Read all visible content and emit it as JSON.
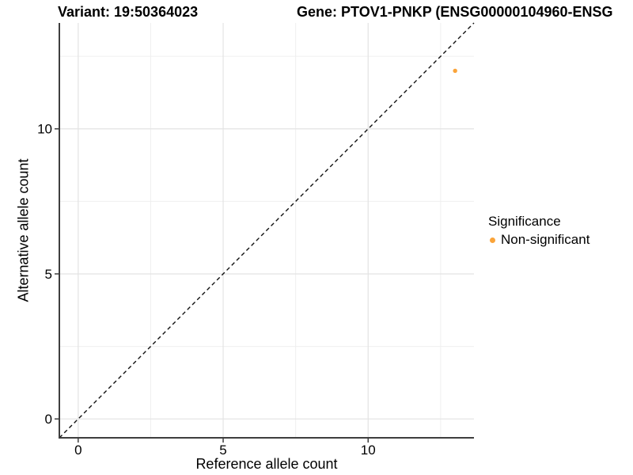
{
  "chart_data": {
    "type": "scatter",
    "title_left": "Variant: 19:50364023",
    "title_right": "Gene: PTOV1-PNKP (ENSG00000104960-ENSG",
    "xlabel": "Reference allele count",
    "ylabel": "Alternative allele count",
    "xlim": [
      -0.65,
      13.65
    ],
    "ylim": [
      -0.65,
      13.65
    ],
    "x_ticks": [
      0,
      5,
      10
    ],
    "y_ticks": [
      0,
      5,
      10
    ],
    "x_minor_gridlines": [
      2.5,
      7.5,
      12.5
    ],
    "y_minor_gridlines": [
      2.5,
      7.5,
      12.5
    ],
    "grid": "major+minor",
    "legend_position": "right",
    "reference_line": {
      "type": "identity y=x",
      "style": "dashed"
    },
    "series": [
      {
        "name": "Non-significant",
        "color": "#FAA43A",
        "points": [
          {
            "x": 13,
            "y": 12
          }
        ]
      }
    ],
    "legend": {
      "title": "Significance",
      "items": [
        {
          "label": "Non-significant",
          "color": "#FAA43A"
        }
      ]
    }
  },
  "colors": {
    "background": "#FFFFFF",
    "grid_major": "#E3E3E3",
    "grid_minor": "#EFEFEF",
    "axis_line": "#3E3E3E",
    "reference_line": "#111111",
    "point": "#FAA43A",
    "text": "#000000"
  }
}
